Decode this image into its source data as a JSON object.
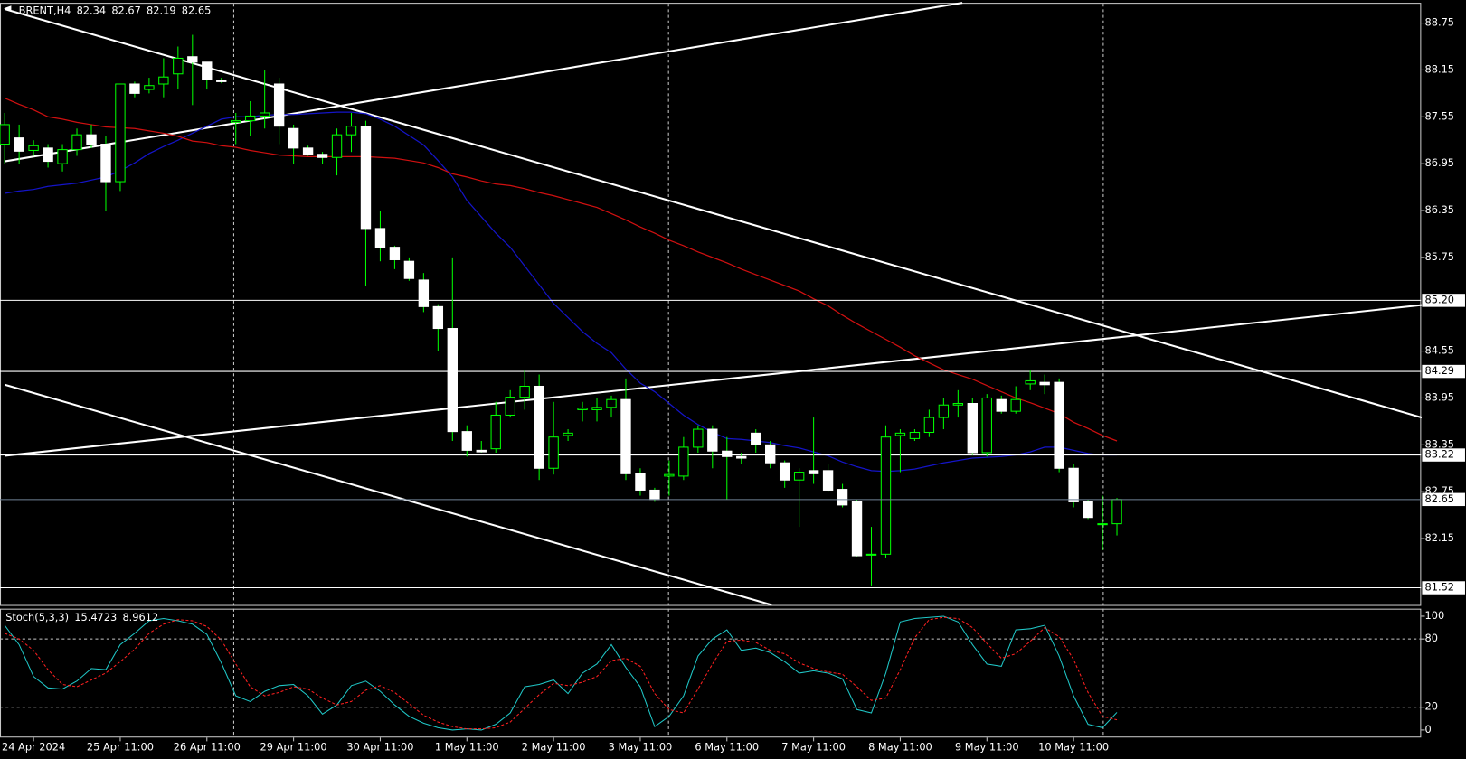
{
  "chart_data": [
    {
      "type": "candlestick",
      "symbol": "BRENT,H4",
      "categories": [
        null,
        null,
        "24 Apr 2024",
        null,
        null,
        null,
        null,
        null,
        "25 Apr 11:00",
        null,
        null,
        null,
        null,
        null,
        "26 Apr 11:00",
        null,
        null,
        null,
        null,
        null,
        "29 Apr 11:00",
        null,
        null,
        null,
        null,
        null,
        "30 Apr 11:00",
        null,
        null,
        null,
        null,
        null,
        "1 May 11:00",
        null,
        null,
        null,
        null,
        null,
        "2 May 11:00",
        null,
        null,
        null,
        null,
        null,
        "3 May 11:00",
        null,
        null,
        null,
        null,
        null,
        "6 May 11:00",
        null,
        null,
        null,
        null,
        null,
        "7 May 11:00",
        null,
        null,
        null,
        null,
        null,
        "8 May 11:00",
        null,
        null,
        null,
        null,
        null,
        "9 May 11:00",
        null,
        null,
        null,
        null,
        null,
        "10 May 11:00",
        null,
        null,
        null
      ],
      "open": [
        87.2,
        87.28,
        87.12,
        87.15,
        86.95,
        87.13,
        87.32,
        87.2,
        86.72,
        87.97,
        87.9,
        87.97,
        88.1,
        88.32,
        88.25,
        88.02,
        87.48,
        87.5,
        87.56,
        87.97,
        87.4,
        87.15,
        87.07,
        87.03,
        87.32,
        87.43,
        86.12,
        85.88,
        85.7,
        85.46,
        85.12,
        84.84,
        83.52,
        83.28,
        83.3,
        83.73,
        83.96,
        84.1,
        83.05,
        83.47,
        83.8,
        83.8,
        83.83,
        83.93,
        82.98,
        82.77,
        82.95,
        82.95,
        83.32,
        83.55,
        83.27,
        83.2,
        83.5,
        83.35,
        83.12,
        82.9,
        83.02,
        83.02,
        82.78,
        82.62,
        81.94,
        81.95,
        83.47,
        83.43,
        83.51,
        83.7,
        83.86,
        83.88,
        83.25,
        83.93,
        83.78,
        84.13,
        84.15,
        84.15,
        83.05,
        82.62,
        82.33,
        82.34
      ],
      "high": [
        87.6,
        87.45,
        87.25,
        87.2,
        87.2,
        87.4,
        87.45,
        87.3,
        87.97,
        88.0,
        88.05,
        88.3,
        88.45,
        88.6,
        88.25,
        88.05,
        87.6,
        87.75,
        88.15,
        88.05,
        87.45,
        87.18,
        87.1,
        87.4,
        87.6,
        87.5,
        86.35,
        85.9,
        85.75,
        85.55,
        85.15,
        85.75,
        83.6,
        83.4,
        83.9,
        84.05,
        84.3,
        84.25,
        83.9,
        83.55,
        83.9,
        83.95,
        83.98,
        84.2,
        83.05,
        82.8,
        83.15,
        83.45,
        83.6,
        83.6,
        83.45,
        83.25,
        83.55,
        83.4,
        83.15,
        83.05,
        83.7,
        83.1,
        82.85,
        82.65,
        82.3,
        83.6,
        83.55,
        83.55,
        83.8,
        83.95,
        84.05,
        83.95,
        84.0,
        83.98,
        84.1,
        84.3,
        84.25,
        84.2,
        83.1,
        82.65,
        82.7,
        82.67
      ],
      "low": [
        86.95,
        86.95,
        87.05,
        86.9,
        86.85,
        87.05,
        87.15,
        86.35,
        86.6,
        87.8,
        87.85,
        87.8,
        87.9,
        87.7,
        87.9,
        87.98,
        87.2,
        87.3,
        87.4,
        87.2,
        86.95,
        87.05,
        86.95,
        86.8,
        87.1,
        85.38,
        85.7,
        85.6,
        85.45,
        85.05,
        84.55,
        83.4,
        83.2,
        83.25,
        83.25,
        83.7,
        83.8,
        82.9,
        82.97,
        83.4,
        83.65,
        83.65,
        83.7,
        82.9,
        82.7,
        82.62,
        82.7,
        82.9,
        83.25,
        83.05,
        82.65,
        83.1,
        83.25,
        83.05,
        82.8,
        82.3,
        82.85,
        82.75,
        82.55,
        81.92,
        81.55,
        81.9,
        83.0,
        83.4,
        83.45,
        83.55,
        83.7,
        83.22,
        83.2,
        83.75,
        83.75,
        84.05,
        84.0,
        83.0,
        82.55,
        82.4,
        82.0,
        82.19
      ],
      "close": [
        87.45,
        87.11,
        87.18,
        86.98,
        87.13,
        87.32,
        87.2,
        86.72,
        87.97,
        87.85,
        87.95,
        88.06,
        88.3,
        88.25,
        88.03,
        88.0,
        87.5,
        87.56,
        87.6,
        87.43,
        87.15,
        87.07,
        87.03,
        87.32,
        87.43,
        86.12,
        85.88,
        85.72,
        85.48,
        85.12,
        84.84,
        83.52,
        83.28,
        83.26,
        83.73,
        83.96,
        84.1,
        83.05,
        83.45,
        83.5,
        83.82,
        83.83,
        83.93,
        82.98,
        82.77,
        82.65,
        82.97,
        83.32,
        83.55,
        83.27,
        83.2,
        83.18,
        83.35,
        83.12,
        82.9,
        83.0,
        82.98,
        82.77,
        82.58,
        81.93,
        81.95,
        83.45,
        83.5,
        83.51,
        83.7,
        83.86,
        83.88,
        83.25,
        83.95,
        83.78,
        83.93,
        84.17,
        84.12,
        83.05,
        82.62,
        82.42,
        82.34,
        82.65
      ],
      "up_color": "#00ff00",
      "up_fill": "#000000",
      "down_fill": "#ffffff",
      "ma": [
        {
          "color": "#1414c8",
          "values": [
            86.57,
            86.6,
            86.62,
            86.66,
            86.68,
            86.7,
            86.74,
            86.78,
            86.86,
            86.96,
            87.08,
            87.17,
            87.25,
            87.34,
            87.43,
            87.52,
            87.55,
            87.55,
            87.57,
            87.58,
            87.58,
            87.59,
            87.6,
            87.61,
            87.61,
            87.59,
            87.52,
            87.43,
            87.31,
            87.19,
            86.99,
            86.78,
            86.48,
            86.27,
            86.06,
            85.88,
            85.64,
            85.4,
            85.16,
            84.98,
            84.8,
            84.65,
            84.53,
            84.32,
            84.14,
            84.03,
            83.88,
            83.73,
            83.61,
            83.51,
            83.43,
            83.42,
            83.4,
            83.38,
            83.34,
            83.31,
            83.26,
            83.21,
            83.13,
            83.07,
            83.02,
            83.01,
            83.02,
            83.04,
            83.08,
            83.12,
            83.15,
            83.18,
            83.19,
            83.2,
            83.22,
            83.26,
            83.32,
            83.32,
            83.28,
            83.24,
            83.22,
            83.22
          ]
        },
        {
          "color": "#d01010",
          "values": [
            87.79,
            87.71,
            87.64,
            87.55,
            87.52,
            87.48,
            87.45,
            87.42,
            87.41,
            87.4,
            87.37,
            87.34,
            87.3,
            87.24,
            87.22,
            87.18,
            87.16,
            87.12,
            87.09,
            87.06,
            87.05,
            87.04,
            87.04,
            87.04,
            87.04,
            87.04,
            87.03,
            87.02,
            86.99,
            86.96,
            86.9,
            86.82,
            86.78,
            86.73,
            86.69,
            86.67,
            86.63,
            86.58,
            86.54,
            86.49,
            86.44,
            86.39,
            86.31,
            86.23,
            86.14,
            86.06,
            85.97,
            85.9,
            85.82,
            85.75,
            85.68,
            85.6,
            85.53,
            85.46,
            85.39,
            85.32,
            85.22,
            85.13,
            85.01,
            84.9,
            84.8,
            84.7,
            84.6,
            84.49,
            84.4,
            84.31,
            84.25,
            84.19,
            84.11,
            84.03,
            83.95,
            83.89,
            83.82,
            83.75,
            83.64,
            83.56,
            83.47,
            83.4
          ]
        }
      ],
      "trendlines": [
        {
          "x": [
            0,
            66.3
          ],
          "values": [
            86.98,
            89.01
          ]
        },
        {
          "x": [
            0,
            98.1
          ],
          "values": [
            88.93,
            83.7
          ]
        },
        {
          "x": [
            0,
            98.1
          ],
          "values": [
            83.21,
            85.14
          ]
        },
        {
          "x": [
            0,
            53.1
          ],
          "values": [
            84.12,
            81.3
          ]
        }
      ],
      "trendline_color": "#ffffff",
      "levels": [
        {
          "value": 85.2,
          "label": "85.20"
        },
        84.29,
        83.22,
        81.52
      ],
      "level_color": "#ffffff",
      "bid_line_color": "#6f8296",
      "ylim": [
        81.3,
        89.01
      ],
      "yticks": [
        82.15,
        82.75,
        83.35,
        83.95,
        84.55,
        85.75,
        86.35,
        86.95,
        87.55,
        88.15,
        88.75
      ]
    },
    {
      "type": "stochastic",
      "name": "Stoch(5,3,3)",
      "series": [
        {
          "color": "#20c8c8",
          "values": [
            92,
            75,
            47,
            37,
            36,
            43,
            54,
            53,
            75,
            85,
            96,
            98,
            96,
            93,
            84,
            59,
            30,
            25,
            34,
            39,
            40,
            30,
            14,
            22,
            39,
            43,
            34,
            22,
            12,
            6,
            2,
            0,
            1,
            0,
            5,
            15,
            38,
            40,
            44,
            32,
            50,
            58,
            75,
            55,
            38,
            3,
            12,
            30,
            65,
            80,
            88,
            70,
            72,
            68,
            60,
            50,
            52,
            50,
            45,
            18,
            15,
            50,
            95,
            98,
            99,
            100,
            95,
            75,
            58,
            56,
            88,
            89,
            92,
            65,
            30,
            5,
            2,
            15.4723
          ]
        },
        {
          "color": "#ff2020",
          "dashed": true,
          "values": [
            85,
            80,
            70,
            53,
            40,
            38,
            44,
            50,
            60,
            71,
            85,
            93,
            97,
            96,
            91,
            79,
            58,
            38,
            30,
            33,
            38,
            36,
            28,
            22,
            25,
            35,
            39,
            33,
            23,
            13,
            7,
            3,
            1,
            1,
            2,
            7,
            19,
            31,
            41,
            39,
            42,
            47,
            61,
            63,
            56,
            32,
            18,
            15,
            36,
            58,
            78,
            79,
            77,
            70,
            67,
            59,
            54,
            51,
            49,
            38,
            26,
            28,
            53,
            81,
            97,
            99,
            98,
            90,
            76,
            63,
            67,
            78,
            90,
            82,
            62,
            33,
            12,
            8.9612
          ]
        }
      ],
      "levels": [
        20,
        80
      ],
      "ylim": [
        -6.6,
        106.6
      ],
      "yticks": [
        0,
        20,
        80,
        100
      ]
    }
  ]
}
